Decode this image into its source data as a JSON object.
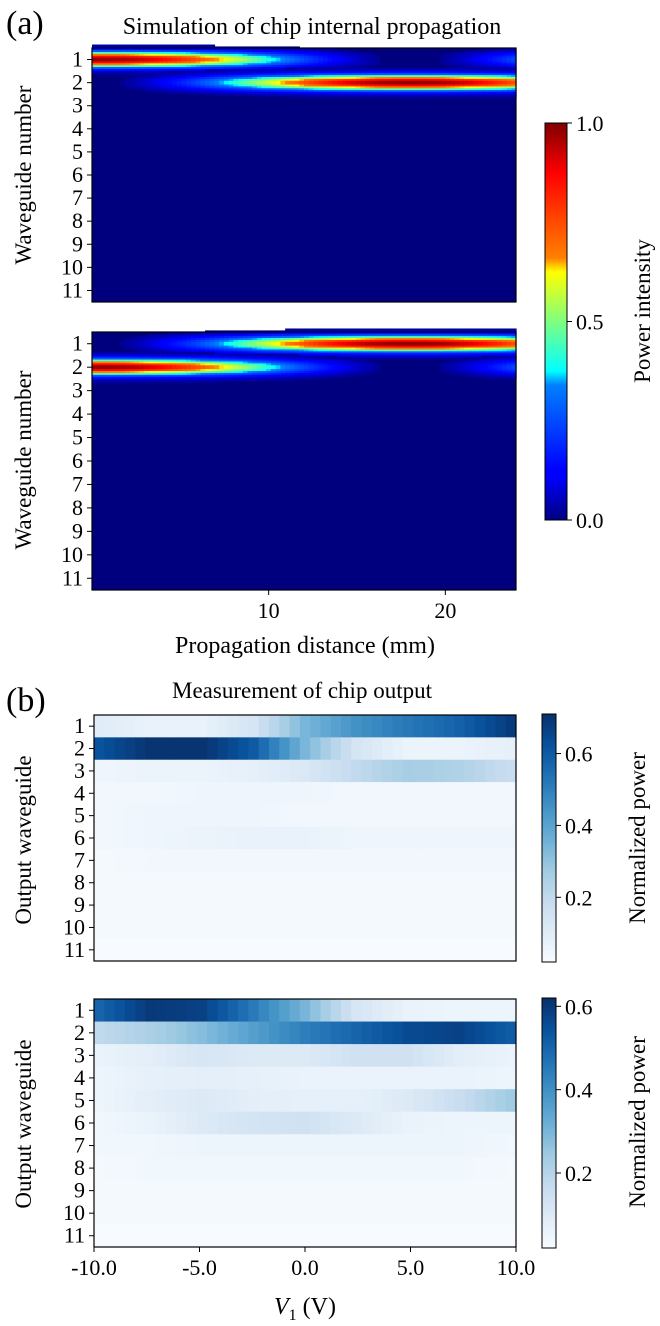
{
  "figure": {
    "panel_a": {
      "letter": "(a)",
      "title": "Simulation of chip internal propagation",
      "ylabel": "Waveguide number",
      "xlabel": "Propagation distance (mm)",
      "colorbar_label": "Power intensity"
    },
    "panel_b": {
      "letter": "(b)",
      "title": "Measurement of chip output",
      "ylabel": "Output waveguide",
      "xlabel": "V",
      "xlabel_sub": "1",
      "xlabel_unit": " (V)",
      "colorbar_label": "Normalized power"
    }
  },
  "chart_data": [
    {
      "type": "heatmap",
      "panel": "(a) top",
      "colormap": "jet",
      "x_range_mm": [
        0,
        24
      ],
      "x_ticks": [
        "10",
        "20"
      ],
      "y_categories": [
        "1",
        "2",
        "3",
        "4",
        "5",
        "6",
        "7",
        "8",
        "9",
        "10",
        "11"
      ],
      "input_waveguide": 1,
      "coupled_waveguide": 2,
      "coupling_length_mm": 18,
      "color_range": [
        0.0,
        1.0
      ],
      "colorbar_ticks": [
        "0.0",
        "0.5",
        "1.0"
      ]
    },
    {
      "type": "heatmap",
      "panel": "(a) bottom",
      "colormap": "jet",
      "x_range_mm": [
        0,
        24
      ],
      "x_ticks": [
        "10",
        "20"
      ],
      "y_categories": [
        "1",
        "2",
        "3",
        "4",
        "5",
        "6",
        "7",
        "8",
        "9",
        "10",
        "11"
      ],
      "input_waveguide": 2,
      "coupled_waveguide": 1,
      "coupling_length_mm": 18,
      "color_range": [
        0.0,
        1.0
      ],
      "colorbar_ticks": [
        "0.0",
        "0.5",
        "1.0"
      ]
    },
    {
      "type": "heatmap",
      "panel": "(b) top",
      "colormap": "Blues",
      "x_range": [
        -10,
        10
      ],
      "x_ticks": [
        "-10.0",
        "-5.0",
        "0.0",
        "5.0",
        "10.0"
      ],
      "y_categories": [
        "1",
        "2",
        "3",
        "4",
        "5",
        "6",
        "7",
        "8",
        "9",
        "10",
        "11"
      ],
      "color_range": [
        0.02,
        0.71
      ],
      "colorbar_ticks": [
        "0.2",
        "0.4",
        "0.6"
      ],
      "profile_points": [
        -10,
        -7.5,
        -5,
        -2.5,
        0,
        2.5,
        5,
        7.5,
        10
      ],
      "rows": [
        [
          0.1,
          0.07,
          0.07,
          0.14,
          0.34,
          0.45,
          0.52,
          0.58,
          0.68
        ],
        [
          0.62,
          0.7,
          0.7,
          0.6,
          0.34,
          0.14,
          0.06,
          0.06,
          0.08
        ],
        [
          0.05,
          0.06,
          0.06,
          0.08,
          0.12,
          0.2,
          0.26,
          0.24,
          0.18
        ],
        [
          0.04,
          0.04,
          0.05,
          0.05,
          0.05,
          0.04,
          0.04,
          0.04,
          0.04
        ],
        [
          0.04,
          0.05,
          0.05,
          0.05,
          0.04,
          0.04,
          0.04,
          0.04,
          0.04
        ],
        [
          0.04,
          0.05,
          0.06,
          0.07,
          0.07,
          0.05,
          0.05,
          0.05,
          0.05
        ],
        [
          0.03,
          0.04,
          0.04,
          0.04,
          0.04,
          0.04,
          0.04,
          0.04,
          0.04
        ],
        [
          0.03,
          0.03,
          0.03,
          0.03,
          0.03,
          0.03,
          0.03,
          0.03,
          0.03
        ],
        [
          0.03,
          0.03,
          0.03,
          0.03,
          0.03,
          0.03,
          0.03,
          0.03,
          0.03
        ],
        [
          0.03,
          0.03,
          0.03,
          0.03,
          0.03,
          0.03,
          0.03,
          0.03,
          0.03
        ],
        [
          0.02,
          0.02,
          0.02,
          0.02,
          0.02,
          0.02,
          0.02,
          0.02,
          0.02
        ]
      ]
    },
    {
      "type": "heatmap",
      "panel": "(b) bottom",
      "colormap": "Blues",
      "x_range": [
        -10,
        10
      ],
      "x_ticks": [
        "-10.0",
        "-5.0",
        "0.0",
        "5.0",
        "10.0"
      ],
      "y_categories": [
        "1",
        "2",
        "3",
        "4",
        "5",
        "6",
        "7",
        "8",
        "9",
        "10",
        "11"
      ],
      "color_range": [
        0.02,
        0.62
      ],
      "colorbar_ticks": [
        "0.2",
        "0.4",
        "0.6"
      ],
      "profile_points": [
        -10,
        -7.5,
        -5,
        -2.5,
        0,
        2.5,
        5,
        7.5,
        10
      ],
      "rows": [
        [
          0.5,
          0.6,
          0.58,
          0.45,
          0.3,
          0.12,
          0.06,
          0.05,
          0.05
        ],
        [
          0.18,
          0.22,
          0.28,
          0.36,
          0.44,
          0.5,
          0.56,
          0.58,
          0.52
        ],
        [
          0.06,
          0.08,
          0.12,
          0.1,
          0.1,
          0.14,
          0.14,
          0.08,
          0.06
        ],
        [
          0.05,
          0.07,
          0.08,
          0.07,
          0.06,
          0.06,
          0.06,
          0.06,
          0.05
        ],
        [
          0.05,
          0.08,
          0.1,
          0.08,
          0.07,
          0.07,
          0.1,
          0.16,
          0.24
        ],
        [
          0.04,
          0.06,
          0.1,
          0.13,
          0.14,
          0.1,
          0.06,
          0.05,
          0.05
        ],
        [
          0.04,
          0.04,
          0.05,
          0.05,
          0.05,
          0.05,
          0.05,
          0.05,
          0.04
        ],
        [
          0.03,
          0.04,
          0.04,
          0.04,
          0.04,
          0.04,
          0.04,
          0.04,
          0.03
        ],
        [
          0.03,
          0.03,
          0.03,
          0.03,
          0.03,
          0.03,
          0.03,
          0.03,
          0.03
        ],
        [
          0.03,
          0.03,
          0.03,
          0.03,
          0.03,
          0.03,
          0.03,
          0.03,
          0.03
        ],
        [
          0.02,
          0.02,
          0.02,
          0.02,
          0.02,
          0.02,
          0.02,
          0.02,
          0.02
        ]
      ]
    }
  ]
}
